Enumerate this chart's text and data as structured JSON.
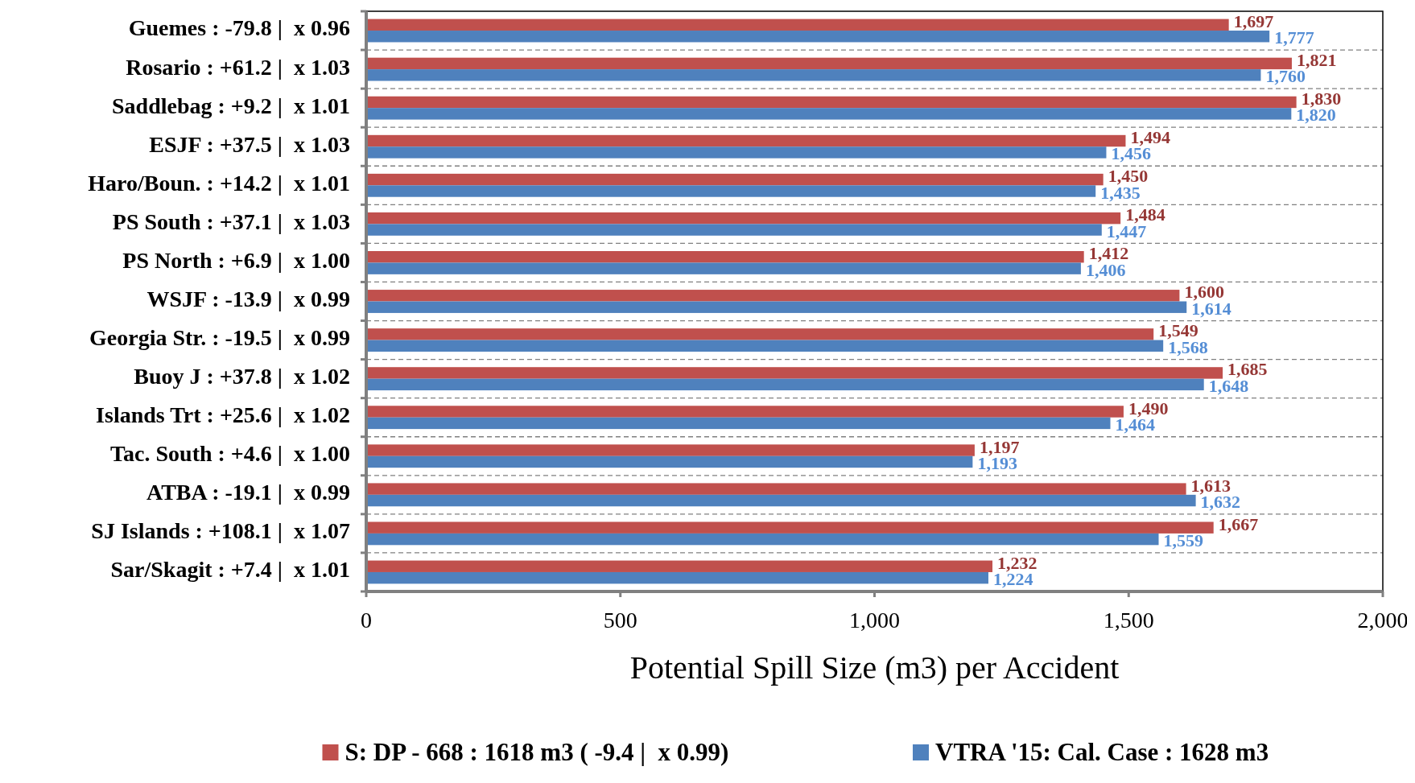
{
  "chart_data": {
    "type": "bar",
    "orientation": "horizontal",
    "xlabel": "Potential Spill Size (m3) per Accident",
    "categories": [
      "Guemes : -79.8 |  x 0.96",
      "Rosario : +61.2 |  x 1.03",
      "Saddlebag : +9.2 |  x 1.01",
      "ESJF : +37.5 |  x 1.03",
      "Haro/Boun. : +14.2 |  x 1.01",
      "PS South : +37.1 |  x 1.03",
      "PS North : +6.9 |  x 1.00",
      "WSJF : -13.9 |  x 0.99",
      "Georgia Str. : -19.5 |  x 0.99",
      "Buoy J : +37.8 |  x 1.02",
      "Islands Trt : +25.6 |  x 1.02",
      "Tac. South : +4.6 |  x 1.00",
      "ATBA : -19.1 |  x 0.99",
      "SJ Islands : +108.1 |  x 1.07",
      "Sar/Skagit : +7.4 |  x 1.01"
    ],
    "series": [
      {
        "name": "S: DP - 668 : 1618 m3 ( -9.4 |  x 0.99)",
        "color": "#c0504d",
        "values": [
          1697,
          1821,
          1830,
          1494,
          1450,
          1484,
          1412,
          1600,
          1549,
          1685,
          1490,
          1197,
          1613,
          1667,
          1232
        ],
        "value_labels": [
          "1,697",
          "1,821",
          "1,830",
          "1,494",
          "1,450",
          "1,484",
          "1,412",
          "1,600",
          "1,549",
          "1,685",
          "1,490",
          "1,197",
          "1,613",
          "1,667",
          "1,232"
        ]
      },
      {
        "name": "VTRA '15: Cal. Case : 1628 m3",
        "color": "#4f81bd",
        "values": [
          1777,
          1760,
          1820,
          1456,
          1435,
          1447,
          1406,
          1614,
          1568,
          1648,
          1464,
          1193,
          1632,
          1559,
          1224
        ],
        "value_labels": [
          "1,777",
          "1,760",
          "1,820",
          "1,456",
          "1,435",
          "1,447",
          "1,406",
          "1,614",
          "1,568",
          "1,648",
          "1,464",
          "1,193",
          "1,632",
          "1,559",
          "1,224"
        ]
      }
    ],
    "xlim": [
      0,
      2000
    ],
    "xticks": [
      {
        "value": 0,
        "label": "0"
      },
      {
        "value": 500,
        "label": "500"
      },
      {
        "value": 1000,
        "label": "1,000"
      },
      {
        "value": 1500,
        "label": "1,500"
      },
      {
        "value": 2000,
        "label": "2,000"
      }
    ],
    "grid": "y",
    "legend": "bottom"
  }
}
